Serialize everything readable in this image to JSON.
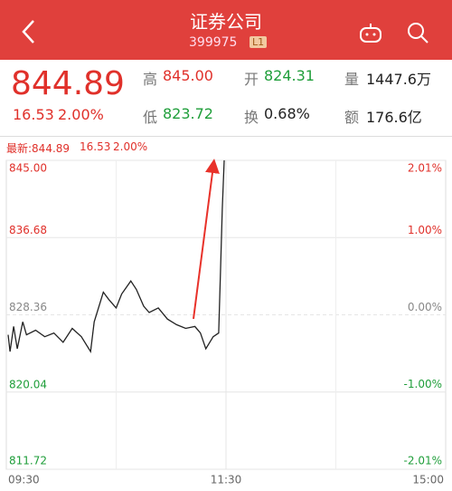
{
  "header": {
    "title": "证券公司",
    "code": "399975",
    "badge": "L1"
  },
  "quote": {
    "price": "844.89",
    "change": "16.53",
    "percent": "2.00%",
    "stats": [
      {
        "label": "高",
        "value": "845.00"
      },
      {
        "label": "开",
        "value": "824.31"
      },
      {
        "label": "量",
        "value": "1447.6万"
      },
      {
        "label": "低",
        "value": "823.72"
      },
      {
        "label": "换",
        "value": "0.68%"
      },
      {
        "label": "额",
        "value": "176.6亿"
      }
    ]
  },
  "latest": {
    "price": "最新:844.89",
    "change": "16.53",
    "percent": "2.00%"
  },
  "chart_data": {
    "type": "line",
    "x": [
      1,
      2,
      4,
      6,
      9,
      11,
      16,
      21,
      26,
      31,
      36,
      41,
      46,
      48,
      53,
      56,
      60,
      63,
      68,
      71,
      75,
      78,
      83,
      88,
      93,
      98,
      103,
      106,
      109,
      113,
      116,
      117,
      118,
      119
    ],
    "values": [
      826.2,
      824.4,
      827.1,
      824.7,
      827.6,
      826.2,
      826.7,
      826.0,
      826.4,
      825.4,
      826.9,
      826.0,
      824.4,
      827.6,
      830.8,
      830.0,
      829.1,
      830.6,
      832.0,
      831.1,
      829.3,
      828.6,
      829.1,
      827.9,
      827.3,
      826.9,
      827.1,
      826.4,
      824.7,
      826.0,
      826.4,
      833.0,
      839.8,
      845.0
    ],
    "color": "#222222",
    "xlim": [
      0,
      240
    ],
    "xticks": [
      {
        "value": 0,
        "label": "09:30"
      },
      {
        "value": 120,
        "label": "11:30"
      },
      {
        "value": 240,
        "label": "15:00"
      }
    ],
    "ylim": [
      811.72,
      845.0
    ],
    "yticks": [
      {
        "value": 845.0,
        "label": "845.00"
      },
      836.68,
      828.36,
      820.04,
      811.72
    ],
    "y2lim": [
      -2.01,
      2.01
    ],
    "y2ticks": [
      {
        "value": 2.01,
        "label": "2.01%"
      },
      {
        "value": 1.0,
        "label": "1.00%"
      },
      {
        "value": 0,
        "label": "0.00%"
      },
      {
        "value": -1.0,
        "label": "-1.00%"
      },
      {
        "value": -2.01,
        "label": "-2.01%"
      }
    ],
    "grid": true
  }
}
